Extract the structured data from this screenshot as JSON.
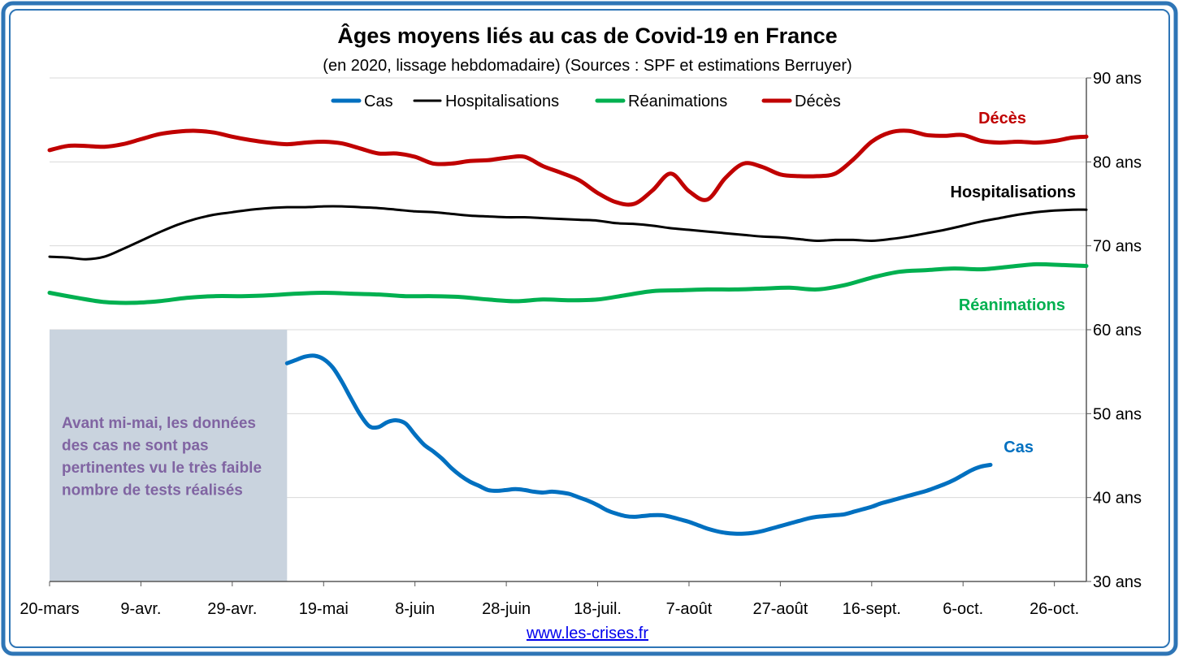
{
  "chart_data": {
    "type": "line",
    "title": "Âges moyens liés au cas de Covid-19 en France",
    "subtitle": "(en 2020, lissage hebdomadaire) (Sources : SPF et estimations Berruyer)",
    "xlabel": "",
    "ylabel": "",
    "ylim": [
      30,
      90
    ],
    "y_axis_side": "right",
    "y_ticks": [
      {
        "value": 30,
        "label": "30 ans"
      },
      {
        "value": 40,
        "label": "40 ans"
      },
      {
        "value": 50,
        "label": "50 ans"
      },
      {
        "value": 60,
        "label": "60 ans"
      },
      {
        "value": 70,
        "label": "70 ans"
      },
      {
        "value": 80,
        "label": "80 ans"
      },
      {
        "value": 90,
        "label": "90 ans"
      }
    ],
    "x_range": [
      "2020-03-20",
      "2020-11-02"
    ],
    "x_ticks": [
      {
        "date": "2020-03-20",
        "label": "20-mars"
      },
      {
        "date": "2020-04-09",
        "label": "9-avr."
      },
      {
        "date": "2020-04-29",
        "label": "29-avr."
      },
      {
        "date": "2020-05-19",
        "label": "19-mai"
      },
      {
        "date": "2020-06-08",
        "label": "8-juin"
      },
      {
        "date": "2020-06-28",
        "label": "28-juin"
      },
      {
        "date": "2020-07-18",
        "label": "18-juil."
      },
      {
        "date": "2020-08-07",
        "label": "7-août"
      },
      {
        "date": "2020-08-27",
        "label": "27-août"
      },
      {
        "date": "2020-09-16",
        "label": "16-sept."
      },
      {
        "date": "2020-10-06",
        "label": "6-oct."
      },
      {
        "date": "2020-10-26",
        "label": "26-oct."
      }
    ],
    "grid": true,
    "legend_position": "top",
    "series": [
      {
        "name": "Cas",
        "color": "#0070C0",
        "end_label": "Cas",
        "points": [
          [
            "2020-05-11",
            56.0
          ],
          [
            "2020-05-13",
            56.4
          ],
          [
            "2020-05-15",
            56.8
          ],
          [
            "2020-05-17",
            56.9
          ],
          [
            "2020-05-19",
            56.5
          ],
          [
            "2020-05-21",
            55.5
          ],
          [
            "2020-05-23",
            53.8
          ],
          [
            "2020-05-25",
            51.8
          ],
          [
            "2020-05-27",
            49.9
          ],
          [
            "2020-05-29",
            48.5
          ],
          [
            "2020-05-31",
            48.4
          ],
          [
            "2020-06-02",
            49.0
          ],
          [
            "2020-06-04",
            49.2
          ],
          [
            "2020-06-06",
            48.8
          ],
          [
            "2020-06-08",
            47.5
          ],
          [
            "2020-06-10",
            46.3
          ],
          [
            "2020-06-12",
            45.5
          ],
          [
            "2020-06-14",
            44.6
          ],
          [
            "2020-06-16",
            43.5
          ],
          [
            "2020-06-18",
            42.6
          ],
          [
            "2020-06-20",
            41.9
          ],
          [
            "2020-06-22",
            41.4
          ],
          [
            "2020-06-24",
            40.9
          ],
          [
            "2020-06-26",
            40.8
          ],
          [
            "2020-06-28",
            40.9
          ],
          [
            "2020-06-30",
            41.0
          ],
          [
            "2020-07-02",
            40.9
          ],
          [
            "2020-07-04",
            40.7
          ],
          [
            "2020-07-06",
            40.6
          ],
          [
            "2020-07-08",
            40.7
          ],
          [
            "2020-07-10",
            40.6
          ],
          [
            "2020-07-12",
            40.4
          ],
          [
            "2020-07-14",
            40.0
          ],
          [
            "2020-07-16",
            39.6
          ],
          [
            "2020-07-18",
            39.1
          ],
          [
            "2020-07-20",
            38.5
          ],
          [
            "2020-07-22",
            38.1
          ],
          [
            "2020-07-24",
            37.8
          ],
          [
            "2020-07-26",
            37.7
          ],
          [
            "2020-07-28",
            37.8
          ],
          [
            "2020-07-30",
            37.9
          ],
          [
            "2020-08-01",
            37.9
          ],
          [
            "2020-08-03",
            37.7
          ],
          [
            "2020-08-05",
            37.4
          ],
          [
            "2020-08-07",
            37.1
          ],
          [
            "2020-08-09",
            36.7
          ],
          [
            "2020-08-11",
            36.3
          ],
          [
            "2020-08-13",
            36.0
          ],
          [
            "2020-08-15",
            35.8
          ],
          [
            "2020-08-17",
            35.7
          ],
          [
            "2020-08-19",
            35.7
          ],
          [
            "2020-08-21",
            35.8
          ],
          [
            "2020-08-23",
            36.0
          ],
          [
            "2020-08-25",
            36.3
          ],
          [
            "2020-08-27",
            36.6
          ],
          [
            "2020-08-29",
            36.9
          ],
          [
            "2020-08-31",
            37.2
          ],
          [
            "2020-09-02",
            37.5
          ],
          [
            "2020-09-04",
            37.7
          ],
          [
            "2020-09-06",
            37.8
          ],
          [
            "2020-09-08",
            37.9
          ],
          [
            "2020-09-10",
            38.0
          ],
          [
            "2020-09-12",
            38.3
          ],
          [
            "2020-09-14",
            38.6
          ],
          [
            "2020-09-16",
            38.9
          ],
          [
            "2020-09-18",
            39.3
          ],
          [
            "2020-09-20",
            39.6
          ],
          [
            "2020-09-22",
            39.9
          ],
          [
            "2020-09-24",
            40.2
          ],
          [
            "2020-09-26",
            40.5
          ],
          [
            "2020-09-28",
            40.8
          ],
          [
            "2020-09-30",
            41.2
          ],
          [
            "2020-10-02",
            41.6
          ],
          [
            "2020-10-04",
            42.1
          ],
          [
            "2020-10-06",
            42.7
          ],
          [
            "2020-10-08",
            43.3
          ],
          [
            "2020-10-10",
            43.7
          ],
          [
            "2020-10-12",
            43.9
          ]
        ]
      },
      {
        "name": "Hospitalisations",
        "color": "#000000",
        "end_label": "Hospitalisations",
        "points": [
          [
            "2020-03-20",
            68.7
          ],
          [
            "2020-03-24",
            68.6
          ],
          [
            "2020-03-28",
            68.4
          ],
          [
            "2020-04-01",
            68.7
          ],
          [
            "2020-04-05",
            69.6
          ],
          [
            "2020-04-09",
            70.6
          ],
          [
            "2020-04-13",
            71.6
          ],
          [
            "2020-04-17",
            72.5
          ],
          [
            "2020-04-21",
            73.2
          ],
          [
            "2020-04-25",
            73.7
          ],
          [
            "2020-04-29",
            74.0
          ],
          [
            "2020-05-03",
            74.3
          ],
          [
            "2020-05-07",
            74.5
          ],
          [
            "2020-05-11",
            74.6
          ],
          [
            "2020-05-15",
            74.6
          ],
          [
            "2020-05-19",
            74.7
          ],
          [
            "2020-05-23",
            74.7
          ],
          [
            "2020-05-27",
            74.6
          ],
          [
            "2020-05-31",
            74.5
          ],
          [
            "2020-06-04",
            74.3
          ],
          [
            "2020-06-08",
            74.1
          ],
          [
            "2020-06-12",
            74.0
          ],
          [
            "2020-06-16",
            73.8
          ],
          [
            "2020-06-20",
            73.6
          ],
          [
            "2020-06-24",
            73.5
          ],
          [
            "2020-06-28",
            73.4
          ],
          [
            "2020-07-02",
            73.4
          ],
          [
            "2020-07-06",
            73.3
          ],
          [
            "2020-07-10",
            73.2
          ],
          [
            "2020-07-14",
            73.1
          ],
          [
            "2020-07-18",
            73.0
          ],
          [
            "2020-07-22",
            72.7
          ],
          [
            "2020-07-26",
            72.6
          ],
          [
            "2020-07-30",
            72.4
          ],
          [
            "2020-08-03",
            72.1
          ],
          [
            "2020-08-07",
            71.9
          ],
          [
            "2020-08-11",
            71.7
          ],
          [
            "2020-08-15",
            71.5
          ],
          [
            "2020-08-19",
            71.3
          ],
          [
            "2020-08-23",
            71.1
          ],
          [
            "2020-08-27",
            71.0
          ],
          [
            "2020-08-31",
            70.8
          ],
          [
            "2020-09-04",
            70.6
          ],
          [
            "2020-09-08",
            70.7
          ],
          [
            "2020-09-12",
            70.7
          ],
          [
            "2020-09-16",
            70.6
          ],
          [
            "2020-09-20",
            70.8
          ],
          [
            "2020-09-24",
            71.1
          ],
          [
            "2020-09-28",
            71.5
          ],
          [
            "2020-10-02",
            71.9
          ],
          [
            "2020-10-06",
            72.4
          ],
          [
            "2020-10-10",
            72.9
          ],
          [
            "2020-10-14",
            73.3
          ],
          [
            "2020-10-18",
            73.7
          ],
          [
            "2020-10-22",
            74.0
          ],
          [
            "2020-10-26",
            74.2
          ],
          [
            "2020-10-30",
            74.3
          ],
          [
            "2020-11-02",
            74.3
          ]
        ]
      },
      {
        "name": "Réanimations",
        "color": "#00B050",
        "end_label": "Réanimations",
        "points": [
          [
            "2020-03-20",
            64.4
          ],
          [
            "2020-03-26",
            63.8
          ],
          [
            "2020-04-01",
            63.3
          ],
          [
            "2020-04-07",
            63.2
          ],
          [
            "2020-04-13",
            63.4
          ],
          [
            "2020-04-19",
            63.8
          ],
          [
            "2020-04-25",
            64.0
          ],
          [
            "2020-05-01",
            64.0
          ],
          [
            "2020-05-07",
            64.1
          ],
          [
            "2020-05-13",
            64.3
          ],
          [
            "2020-05-19",
            64.4
          ],
          [
            "2020-05-25",
            64.3
          ],
          [
            "2020-05-31",
            64.2
          ],
          [
            "2020-06-06",
            64.0
          ],
          [
            "2020-06-12",
            64.0
          ],
          [
            "2020-06-18",
            63.9
          ],
          [
            "2020-06-24",
            63.6
          ],
          [
            "2020-06-30",
            63.4
          ],
          [
            "2020-07-06",
            63.6
          ],
          [
            "2020-07-12",
            63.5
          ],
          [
            "2020-07-18",
            63.6
          ],
          [
            "2020-07-24",
            64.1
          ],
          [
            "2020-07-30",
            64.6
          ],
          [
            "2020-08-05",
            64.7
          ],
          [
            "2020-08-11",
            64.8
          ],
          [
            "2020-08-17",
            64.8
          ],
          [
            "2020-08-23",
            64.9
          ],
          [
            "2020-08-29",
            65.0
          ],
          [
            "2020-09-04",
            64.8
          ],
          [
            "2020-09-10",
            65.3
          ],
          [
            "2020-09-16",
            66.2
          ],
          [
            "2020-09-22",
            66.9
          ],
          [
            "2020-09-28",
            67.1
          ],
          [
            "2020-10-04",
            67.3
          ],
          [
            "2020-10-10",
            67.2
          ],
          [
            "2020-10-16",
            67.5
          ],
          [
            "2020-10-22",
            67.8
          ],
          [
            "2020-10-28",
            67.7
          ],
          [
            "2020-11-02",
            67.6
          ]
        ]
      },
      {
        "name": "Décès",
        "color": "#C00000",
        "end_label": "Décès",
        "points": [
          [
            "2020-03-20",
            81.4
          ],
          [
            "2020-03-24",
            81.9
          ],
          [
            "2020-03-28",
            81.9
          ],
          [
            "2020-04-01",
            81.8
          ],
          [
            "2020-04-05",
            82.1
          ],
          [
            "2020-04-09",
            82.7
          ],
          [
            "2020-04-13",
            83.3
          ],
          [
            "2020-04-17",
            83.6
          ],
          [
            "2020-04-21",
            83.7
          ],
          [
            "2020-04-25",
            83.5
          ],
          [
            "2020-04-29",
            83.0
          ],
          [
            "2020-05-03",
            82.6
          ],
          [
            "2020-05-07",
            82.3
          ],
          [
            "2020-05-11",
            82.1
          ],
          [
            "2020-05-15",
            82.3
          ],
          [
            "2020-05-19",
            82.4
          ],
          [
            "2020-05-23",
            82.2
          ],
          [
            "2020-05-27",
            81.6
          ],
          [
            "2020-05-31",
            81.0
          ],
          [
            "2020-06-04",
            81.0
          ],
          [
            "2020-06-08",
            80.6
          ],
          [
            "2020-06-12",
            79.8
          ],
          [
            "2020-06-16",
            79.8
          ],
          [
            "2020-06-20",
            80.1
          ],
          [
            "2020-06-24",
            80.2
          ],
          [
            "2020-06-28",
            80.5
          ],
          [
            "2020-07-02",
            80.6
          ],
          [
            "2020-07-06",
            79.5
          ],
          [
            "2020-07-10",
            78.7
          ],
          [
            "2020-07-14",
            77.8
          ],
          [
            "2020-07-18",
            76.3
          ],
          [
            "2020-07-22",
            75.2
          ],
          [
            "2020-07-26",
            75.0
          ],
          [
            "2020-07-30",
            76.6
          ],
          [
            "2020-08-03",
            78.6
          ],
          [
            "2020-08-07",
            76.5
          ],
          [
            "2020-08-11",
            75.5
          ],
          [
            "2020-08-15",
            78.1
          ],
          [
            "2020-08-19",
            79.8
          ],
          [
            "2020-08-23",
            79.4
          ],
          [
            "2020-08-27",
            78.5
          ],
          [
            "2020-08-31",
            78.3
          ],
          [
            "2020-09-04",
            78.3
          ],
          [
            "2020-09-08",
            78.6
          ],
          [
            "2020-09-12",
            80.3
          ],
          [
            "2020-09-16",
            82.4
          ],
          [
            "2020-09-20",
            83.5
          ],
          [
            "2020-09-24",
            83.7
          ],
          [
            "2020-09-28",
            83.2
          ],
          [
            "2020-10-02",
            83.1
          ],
          [
            "2020-10-06",
            83.2
          ],
          [
            "2020-10-10",
            82.5
          ],
          [
            "2020-10-14",
            82.3
          ],
          [
            "2020-10-18",
            82.4
          ],
          [
            "2020-10-22",
            82.3
          ],
          [
            "2020-10-26",
            82.5
          ],
          [
            "2020-10-30",
            82.9
          ],
          [
            "2020-11-02",
            83.0
          ]
        ]
      }
    ],
    "shaded_region": {
      "x_start": "2020-03-20",
      "x_end": "2020-05-11",
      "y_top": 60,
      "y_bottom": 30,
      "color": "#C9D3DE",
      "text_lines": [
        "Avant mi-mai, les données",
        "des cas ne sont pas",
        "pertinentes vu le très faible",
        "nombre de tests réalisés"
      ],
      "text_color": "#8064A2"
    },
    "footer_link": "www.les-crises.fr"
  }
}
